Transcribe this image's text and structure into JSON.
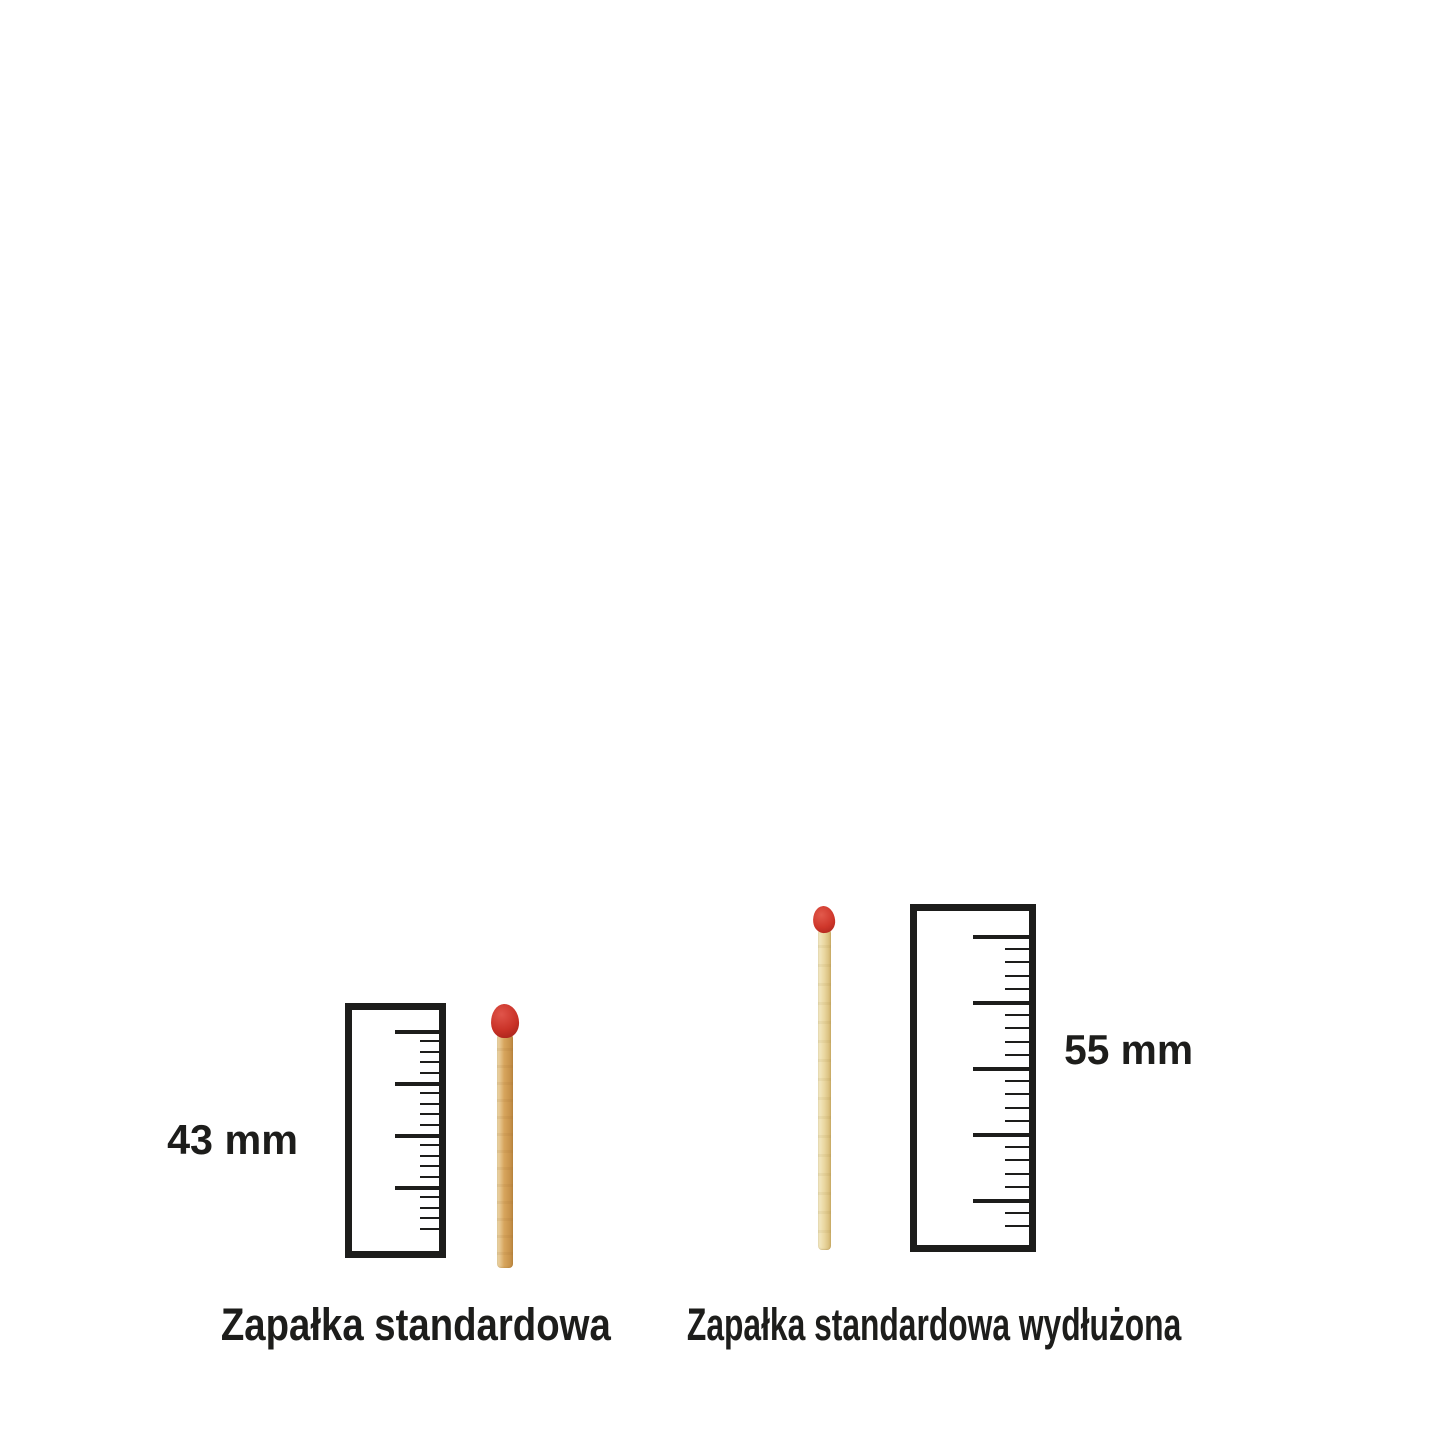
{
  "background": "#ffffff",
  "ink_color": "#1d1d1b",
  "matches": [
    {
      "id": "standard",
      "length_label": "43 mm",
      "caption": "Zapałka standardowa",
      "head_color": "#c93227",
      "stick_color": "#d7a55d",
      "ruler": {
        "tick_count": 20,
        "major_every": 5,
        "start": 20,
        "step": 10.4,
        "major_len": 44,
        "minor_len": 19,
        "major_thick": 4,
        "minor_thick": 2
      }
    },
    {
      "id": "elongated",
      "length_label": "55 mm",
      "caption": "Zapałka standardowa wydłużona",
      "head_color": "#cf372b",
      "stick_color": "#e9d69f",
      "ruler": {
        "tick_count": 23,
        "major_every": 5,
        "start": 24,
        "step": 13.2,
        "major_len": 56,
        "minor_len": 24,
        "major_thick": 4,
        "minor_thick": 2
      }
    }
  ]
}
